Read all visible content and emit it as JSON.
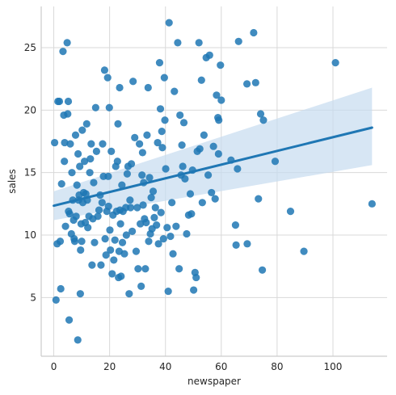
{
  "chart_data": {
    "type": "scatter",
    "title": "",
    "xlabel": "newspaper",
    "ylabel": "sales",
    "xlim": [
      -4.5,
      119.4
    ],
    "ylim": [
      0.3,
      28.3
    ],
    "xticks": [
      0,
      20,
      40,
      60,
      80,
      100
    ],
    "yticks": [
      5,
      10,
      15,
      20,
      25
    ],
    "xtick_labels": [
      "0",
      "20",
      "40",
      "60",
      "80",
      "100"
    ],
    "ytick_labels": [
      "5",
      "10",
      "15",
      "20",
      "25"
    ],
    "grid": true,
    "colors": {
      "points": "#1f77b4",
      "line": "#1f77b4",
      "band": "#c6dbef",
      "grid": "#d9d9d9",
      "spine": "#cccccc"
    },
    "regression": {
      "x": [
        0,
        114
      ],
      "y": [
        12.35,
        18.6
      ],
      "ci_lower": [
        11.2,
        15.6
      ],
      "ci_upper": [
        13.5,
        21.8
      ]
    },
    "points": [
      [
        0.3,
        17.4
      ],
      [
        0.8,
        4.8
      ],
      [
        1.2,
        9.3
      ],
      [
        1.5,
        20.7
      ],
      [
        2.0,
        20.7
      ],
      [
        2.3,
        9.5
      ],
      [
        2.5,
        5.7
      ],
      [
        2.8,
        14.1
      ],
      [
        3.3,
        24.7
      ],
      [
        3.6,
        19.6
      ],
      [
        3.8,
        15.9
      ],
      [
        3.9,
        17.4
      ],
      [
        4.2,
        10.7
      ],
      [
        4.8,
        25.4
      ],
      [
        5.0,
        19.7
      ],
      [
        5.2,
        20.7
      ],
      [
        5.3,
        11.9
      ],
      [
        5.5,
        3.2
      ],
      [
        5.7,
        11.7
      ],
      [
        5.9,
        17.3
      ],
      [
        6.3,
        10.1
      ],
      [
        6.5,
        15.0
      ],
      [
        6.8,
        12.8
      ],
      [
        7.1,
        11.2
      ],
      [
        7.3,
        9.7
      ],
      [
        7.5,
        9.5
      ],
      [
        7.8,
        18.0
      ],
      [
        8.0,
        11.5
      ],
      [
        8.3,
        14.0
      ],
      [
        8.6,
        1.6
      ],
      [
        8.7,
        16.5
      ],
      [
        8.9,
        12.8
      ],
      [
        9.1,
        13.2
      ],
      [
        9.3,
        15.5
      ],
      [
        9.5,
        5.3
      ],
      [
        9.6,
        8.8
      ],
      [
        9.8,
        10.9
      ],
      [
        10.0,
        9.5
      ],
      [
        10.2,
        18.4
      ],
      [
        10.4,
        12.6
      ],
      [
        10.7,
        13.4
      ],
      [
        11.0,
        15.9
      ],
      [
        11.3,
        11.0
      ],
      [
        11.5,
        13.3
      ],
      [
        11.8,
        18.9
      ],
      [
        12.0,
        12.8
      ],
      [
        12.2,
        10.6
      ],
      [
        12.6,
        11.5
      ],
      [
        12.9,
        15.0
      ],
      [
        13.1,
        16.1
      ],
      [
        13.4,
        17.3
      ],
      [
        13.7,
        7.6
      ],
      [
        14.0,
        11.3
      ],
      [
        14.3,
        14.2
      ],
      [
        14.6,
        9.4
      ],
      [
        15.0,
        20.2
      ],
      [
        15.3,
        16.7
      ],
      [
        15.8,
        11.5
      ],
      [
        16.2,
        12.0
      ],
      [
        16.6,
        13.2
      ],
      [
        16.9,
        7.6
      ],
      [
        17.3,
        12.6
      ],
      [
        17.5,
        17.3
      ],
      [
        17.8,
        14.7
      ],
      [
        18.2,
        23.2
      ],
      [
        18.4,
        9.7
      ],
      [
        18.7,
        8.4
      ],
      [
        19.0,
        11.9
      ],
      [
        19.3,
        22.6
      ],
      [
        19.5,
        14.7
      ],
      [
        19.6,
        12.3
      ],
      [
        19.9,
        20.2
      ],
      [
        20.1,
        10.4
      ],
      [
        20.3,
        8.8
      ],
      [
        20.6,
        16.7
      ],
      [
        20.9,
        6.9
      ],
      [
        21.2,
        11.6
      ],
      [
        21.5,
        8.0
      ],
      [
        21.9,
        9.6
      ],
      [
        22.2,
        15.5
      ],
      [
        22.5,
        11.9
      ],
      [
        22.8,
        15.9
      ],
      [
        23.0,
        18.9
      ],
      [
        23.2,
        6.6
      ],
      [
        23.4,
        8.7
      ],
      [
        23.6,
        21.8
      ],
      [
        23.7,
        12.0
      ],
      [
        23.9,
        10.9
      ],
      [
        24.1,
        6.7
      ],
      [
        24.4,
        14.0
      ],
      [
        24.6,
        9.4
      ],
      [
        24.8,
        11.9
      ],
      [
        25.3,
        8.5
      ],
      [
        25.8,
        12.2
      ],
      [
        26.0,
        10.0
      ],
      [
        26.3,
        14.9
      ],
      [
        26.6,
        15.5
      ],
      [
        27.0,
        5.3
      ],
      [
        27.3,
        12.8
      ],
      [
        27.5,
        12.2
      ],
      [
        27.8,
        15.7
      ],
      [
        28.1,
        10.3
      ],
      [
        28.4,
        22.3
      ],
      [
        29.0,
        17.8
      ],
      [
        29.5,
        8.7
      ],
      [
        29.9,
        12.2
      ],
      [
        30.2,
        7.3
      ],
      [
        30.7,
        17.3
      ],
      [
        31.0,
        10.9
      ],
      [
        31.3,
        5.9
      ],
      [
        31.6,
        14.8
      ],
      [
        31.8,
        16.6
      ],
      [
        32.0,
        12.4
      ],
      [
        32.2,
        14.2
      ],
      [
        32.5,
        11.3
      ],
      [
        32.8,
        7.3
      ],
      [
        33.1,
        11.0
      ],
      [
        33.4,
        18.0
      ],
      [
        33.8,
        21.8
      ],
      [
        34.0,
        9.5
      ],
      [
        34.3,
        14.6
      ],
      [
        34.6,
        10.1
      ],
      [
        34.9,
        13.0
      ],
      [
        35.2,
        10.5
      ],
      [
        35.6,
        13.5
      ],
      [
        36.0,
        11.4
      ],
      [
        36.4,
        12.2
      ],
      [
        36.8,
        10.8
      ],
      [
        37.2,
        17.4
      ],
      [
        37.5,
        9.3
      ],
      [
        37.9,
        23.8
      ],
      [
        38.2,
        20.1
      ],
      [
        38.4,
        11.8
      ],
      [
        38.7,
        18.3
      ],
      [
        38.9,
        17.0
      ],
      [
        39.3,
        9.7
      ],
      [
        39.6,
        22.6
      ],
      [
        39.8,
        19.2
      ],
      [
        40.1,
        15.3
      ],
      [
        40.6,
        10.6
      ],
      [
        41.0,
        5.5
      ],
      [
        41.3,
        27.0
      ],
      [
        41.8,
        9.9
      ],
      [
        42.3,
        12.6
      ],
      [
        42.7,
        8.5
      ],
      [
        43.2,
        21.5
      ],
      [
        43.8,
        10.7
      ],
      [
        44.4,
        25.4
      ],
      [
        44.9,
        7.3
      ],
      [
        45.2,
        19.6
      ],
      [
        45.6,
        14.8
      ],
      [
        45.9,
        17.2
      ],
      [
        46.2,
        15.5
      ],
      [
        46.6,
        19.0
      ],
      [
        47.0,
        14.5
      ],
      [
        47.6,
        10.1
      ],
      [
        48.3,
        11.6
      ],
      [
        48.9,
        13.3
      ],
      [
        49.3,
        11.7
      ],
      [
        49.7,
        15.2
      ],
      [
        50.1,
        5.6
      ],
      [
        50.6,
        7.0
      ],
      [
        51.0,
        6.6
      ],
      [
        51.4,
        16.7
      ],
      [
        52.0,
        25.4
      ],
      [
        52.3,
        16.9
      ],
      [
        52.9,
        22.4
      ],
      [
        53.2,
        12.6
      ],
      [
        53.8,
        18.0
      ],
      [
        54.6,
        24.2
      ],
      [
        55.3,
        14.8
      ],
      [
        55.8,
        24.4
      ],
      [
        56.5,
        13.4
      ],
      [
        57.2,
        17.1
      ],
      [
        57.8,
        12.9
      ],
      [
        58.3,
        21.2
      ],
      [
        58.8,
        19.4
      ],
      [
        59.0,
        16.5
      ],
      [
        59.1,
        19.2
      ],
      [
        59.7,
        23.6
      ],
      [
        60.0,
        20.8
      ],
      [
        63.5,
        16.0
      ],
      [
        65.1,
        10.8
      ],
      [
        65.3,
        9.2
      ],
      [
        65.8,
        15.3
      ],
      [
        66.2,
        25.5
      ],
      [
        69.2,
        22.1
      ],
      [
        69.3,
        9.3
      ],
      [
        71.6,
        26.2
      ],
      [
        72.3,
        22.2
      ],
      [
        73.3,
        12.9
      ],
      [
        74.1,
        19.7
      ],
      [
        74.7,
        7.2
      ],
      [
        75.1,
        19.2
      ],
      [
        79.3,
        15.9
      ],
      [
        84.8,
        11.9
      ],
      [
        89.6,
        8.7
      ],
      [
        100.9,
        23.8
      ],
      [
        114.0,
        12.5
      ]
    ]
  }
}
